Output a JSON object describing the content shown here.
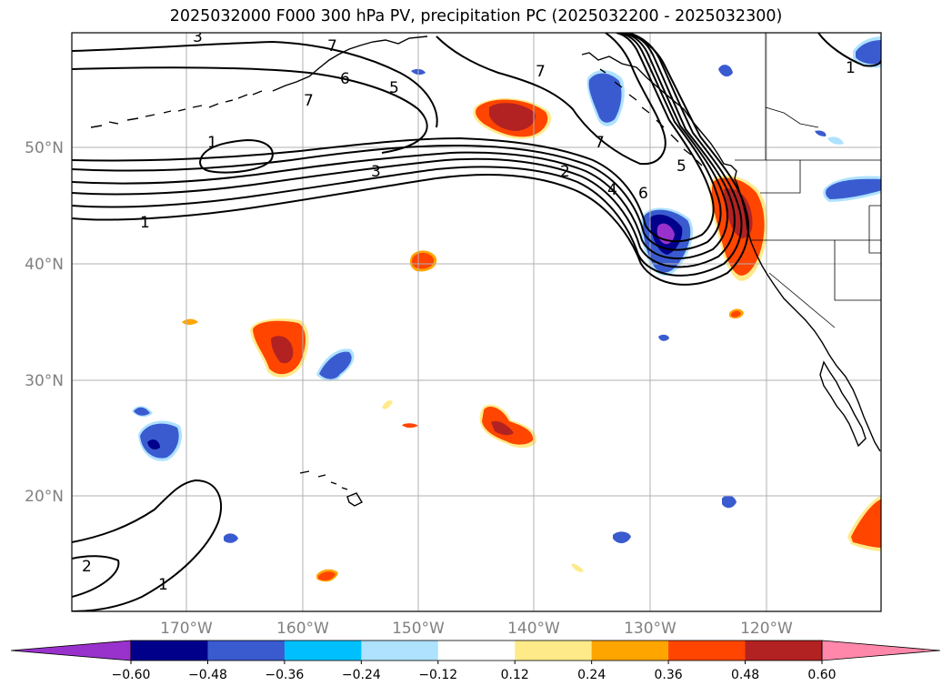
{
  "title": "2025032000 F000 300 hPa PV, precipitation PC (2025032200 - 2025032300)",
  "lat_labels": [
    "50°N",
    "40°N",
    "30°N",
    "20°N"
  ],
  "lon_labels": [
    "170°W",
    "160°W",
    "150°W",
    "140°W",
    "130°W",
    "120°W"
  ],
  "colorbar": {
    "tick_labels": [
      "−0.60",
      "−0.48",
      "−0.36",
      "−0.24",
      "−0.12",
      "0.12",
      "0.24",
      "0.36",
      "0.48",
      "0.60"
    ],
    "colors": [
      "#9932cc",
      "#00008b",
      "#3a5bd0",
      "#00bfff",
      "#aee2ff",
      "#ffffff",
      "#ffea8a",
      "#ffa500",
      "#ff4500",
      "#b22222",
      "#ff88aa"
    ]
  },
  "contour_labels": [
    "3",
    "7",
    "6",
    "5",
    "7",
    "7",
    "1",
    "3",
    "2",
    "4",
    "6",
    "7",
    "5",
    "1",
    "1",
    "2",
    "1"
  ],
  "colors": {
    "contour": "#000000",
    "grid": "#b0b0b0",
    "coast": "#000000"
  }
}
